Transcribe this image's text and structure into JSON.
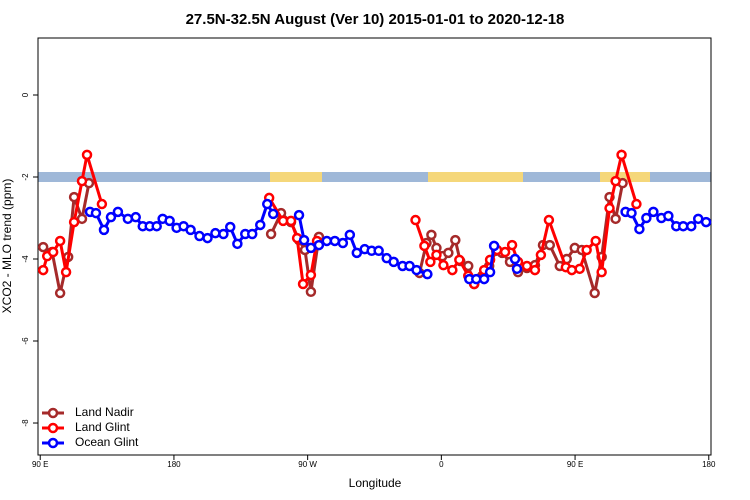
{
  "chart_data": {
    "type": "line",
    "title": "27.5N-32.5N August (Ver 10)   2015-01-01 to 2020-12-18",
    "x_label": "Longitude",
    "y_label": "XCO2 - MLO trend (ppm)",
    "xlim": [
      88.5,
      541.5
    ],
    "ylim": [
      -8.78,
      1.39
    ],
    "xticks": [
      {
        "value": 90,
        "label": "90 E"
      },
      180,
      {
        "value": 270,
        "label": "90 W"
      },
      {
        "value": 360,
        "label": "0"
      },
      {
        "value": 450,
        "label": "90 E"
      },
      {
        "value": 540,
        "label": "180"
      }
    ],
    "yticks": [
      0,
      -2,
      -4,
      -6,
      -8
    ],
    "legend": "bottom-left",
    "series": [
      {
        "name": "Land Nadir",
        "color": "#a52a2a",
        "x": [
          92.0,
          98.0,
          103.4,
          108.8,
          112.8,
          118.1,
          122.8,
          null,
          245.4,
          252.1,
          258.8,
          264.2,
          268.2,
          272.2,
          277.6,
          null,
          345.3,
          350.0,
          353.3,
          356.7,
          360.7,
          364.7,
          369.4,
          372.7,
          378.1,
          382.1,
          387.5,
          392.2,
          396.9,
          400.9,
          406.2,
          411.6,
          417.6,
          423.0,
          428.4,
          433.0,
          439.7,
          444.4,
          449.8,
          454.5,
          463.2,
          467.9,
          473.2,
          477.3,
          482.0
        ],
        "values": [
          -3.71,
          -3.83,
          -4.83,
          -3.95,
          -2.49,
          -3.02,
          -2.15,
          null,
          -3.39,
          -2.88,
          -3.1,
          -3.54,
          -3.78,
          -4.8,
          -3.46,
          null,
          -4.34,
          -3.61,
          -3.41,
          -3.73,
          -3.93,
          -3.85,
          -3.54,
          -4.05,
          -4.17,
          -4.61,
          -4.41,
          -4.17,
          -3.8,
          -3.85,
          -4.07,
          -4.32,
          -4.22,
          -4.15,
          -3.66,
          -3.66,
          -4.17,
          -4.0,
          -3.73,
          -3.78,
          -4.83,
          -3.95,
          -2.49,
          -3.02,
          -2.15
        ]
      },
      {
        "name": "Land Glint",
        "color": "#ff0000",
        "x": [
          92.0,
          94.7,
          98.7,
          103.4,
          107.4,
          112.8,
          118.1,
          121.5,
          131.5,
          null,
          244.1,
          253.5,
          258.8,
          262.9,
          266.9,
          272.2,
          276.3,
          null,
          342.6,
          348.6,
          352.6,
          356.7,
          361.4,
          367.4,
          372.1,
          378.1,
          382.1,
          388.8,
          392.8,
          397.5,
          402.9,
          407.6,
          411.6,
          417.6,
          423.0,
          427.0,
          432.4,
          443.8,
          447.8,
          453.1,
          457.8,
          463.9,
          467.9,
          473.2,
          477.3,
          481.3,
          491.3
        ],
        "values": [
          -4.27,
          -3.93,
          -3.83,
          -3.56,
          -4.32,
          -3.1,
          -2.1,
          -1.46,
          -2.66,
          null,
          -2.51,
          -3.07,
          -3.07,
          -3.49,
          -4.61,
          -4.39,
          -3.56,
          null,
          -3.05,
          -3.68,
          -4.07,
          -3.9,
          -4.15,
          -4.27,
          -4.02,
          -4.41,
          -4.61,
          -4.27,
          -4.02,
          -3.78,
          -3.83,
          -3.66,
          -4.07,
          -4.17,
          -4.27,
          -3.9,
          -3.05,
          -4.2,
          -4.27,
          -4.24,
          -3.78,
          -3.56,
          -4.32,
          -2.76,
          -2.1,
          -1.46,
          -2.66
        ]
      },
      {
        "name": "Ocean Glint",
        "color": "#0000ff",
        "x": [
          123.5,
          127.5,
          132.9,
          137.6,
          142.3,
          149.0,
          154.3,
          159.0,
          163.7,
          168.4,
          172.4,
          177.1,
          181.8,
          186.5,
          191.2,
          197.2,
          202.6,
          207.9,
          213.3,
          217.9,
          222.7,
          228.0,
          232.7,
          238.1,
          242.8,
          246.8,
          null,
          264.2,
          267.6,
          272.2,
          277.6,
          282.9,
          288.3,
          293.7,
          298.4,
          303.1,
          308.4,
          313.1,
          317.8,
          323.2,
          327.9,
          333.9,
          338.6,
          343.3,
          350.6,
          null,
          378.8,
          383.5,
          388.8,
          392.8,
          395.5,
          null,
          409.6,
          410.9,
          null,
          484.0,
          488.0,
          493.3,
          498.0,
          502.7,
          508.1,
          512.8,
          518.1,
          522.8,
          528.2,
          532.9,
          538.2
        ],
        "values": [
          -2.85,
          -2.88,
          -3.29,
          -2.98,
          -2.85,
          -3.02,
          -2.98,
          -3.2,
          -3.2,
          -3.2,
          -3.02,
          -3.07,
          -3.24,
          -3.2,
          -3.29,
          -3.44,
          -3.49,
          -3.37,
          -3.39,
          -3.22,
          -3.63,
          -3.39,
          -3.39,
          -3.17,
          -2.66,
          -2.9,
          null,
          -2.93,
          -3.54,
          -3.73,
          -3.66,
          -3.56,
          -3.56,
          -3.61,
          -3.41,
          -3.85,
          -3.76,
          -3.8,
          -3.8,
          -3.98,
          -4.07,
          -4.17,
          -4.17,
          -4.27,
          -4.37,
          null,
          -4.49,
          -4.49,
          -4.49,
          -4.32,
          -3.68,
          null,
          -4.0,
          -4.24,
          null,
          -2.85,
          -2.88,
          -3.27,
          -3.0,
          -2.85,
          -3.0,
          -2.95,
          -3.2,
          -3.2,
          -3.2,
          -3.02,
          -3.1
        ]
      }
    ]
  }
}
